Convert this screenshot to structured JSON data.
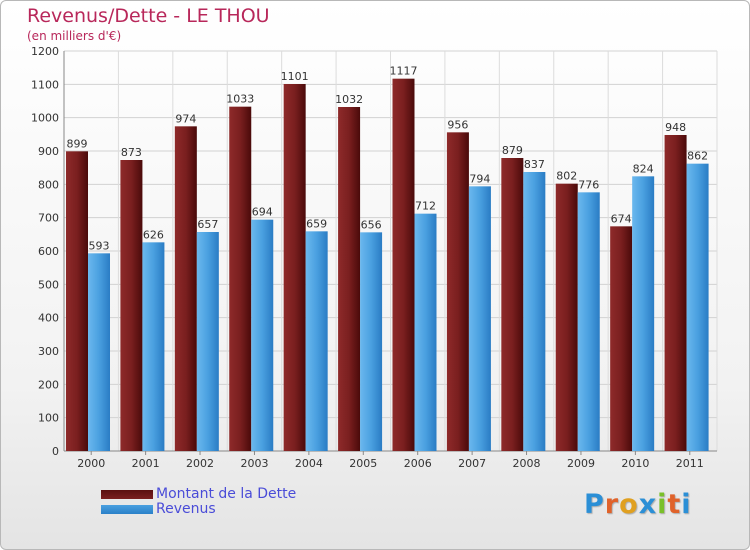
{
  "header": {
    "title": "Revenus/Dette - LE THOU",
    "subtitle": "(en milliers d'€)"
  },
  "colors": {
    "dette": "#7a1f1f",
    "revenus": "#4aa0e0",
    "title": "#b8275a",
    "legend_text": "#4a4cd8"
  },
  "logo": {
    "letters": [
      "P",
      "r",
      "o",
      "x",
      "i",
      "t",
      "i"
    ],
    "letter_colors": [
      "#2b8fd6",
      "#e0622a",
      "#e0a020",
      "#2b8fd6",
      "#7ac02a",
      "#e0622a",
      "#2b8fd6"
    ]
  },
  "chart_data": {
    "type": "bar",
    "title": "Revenus/Dette - LE THOU",
    "subtitle": "(en milliers d'€)",
    "categories": [
      "2000",
      "2001",
      "2002",
      "2003",
      "2004",
      "2005",
      "2006",
      "2007",
      "2008",
      "2009",
      "2010",
      "2011"
    ],
    "series": [
      {
        "name": "Montant de la Dette",
        "values": [
          899,
          873,
          974,
          1033,
          1101,
          1032,
          1117,
          956,
          879,
          802,
          674,
          948
        ]
      },
      {
        "name": "Revenus",
        "values": [
          593,
          626,
          657,
          694,
          659,
          656,
          712,
          794,
          837,
          776,
          824,
          862
        ]
      }
    ],
    "ylim": [
      0,
      1200
    ],
    "yticks": [
      0,
      100,
      200,
      300,
      400,
      500,
      600,
      700,
      800,
      900,
      1000,
      1100,
      1200
    ],
    "grid": true,
    "legend_position": "bottom-left"
  }
}
